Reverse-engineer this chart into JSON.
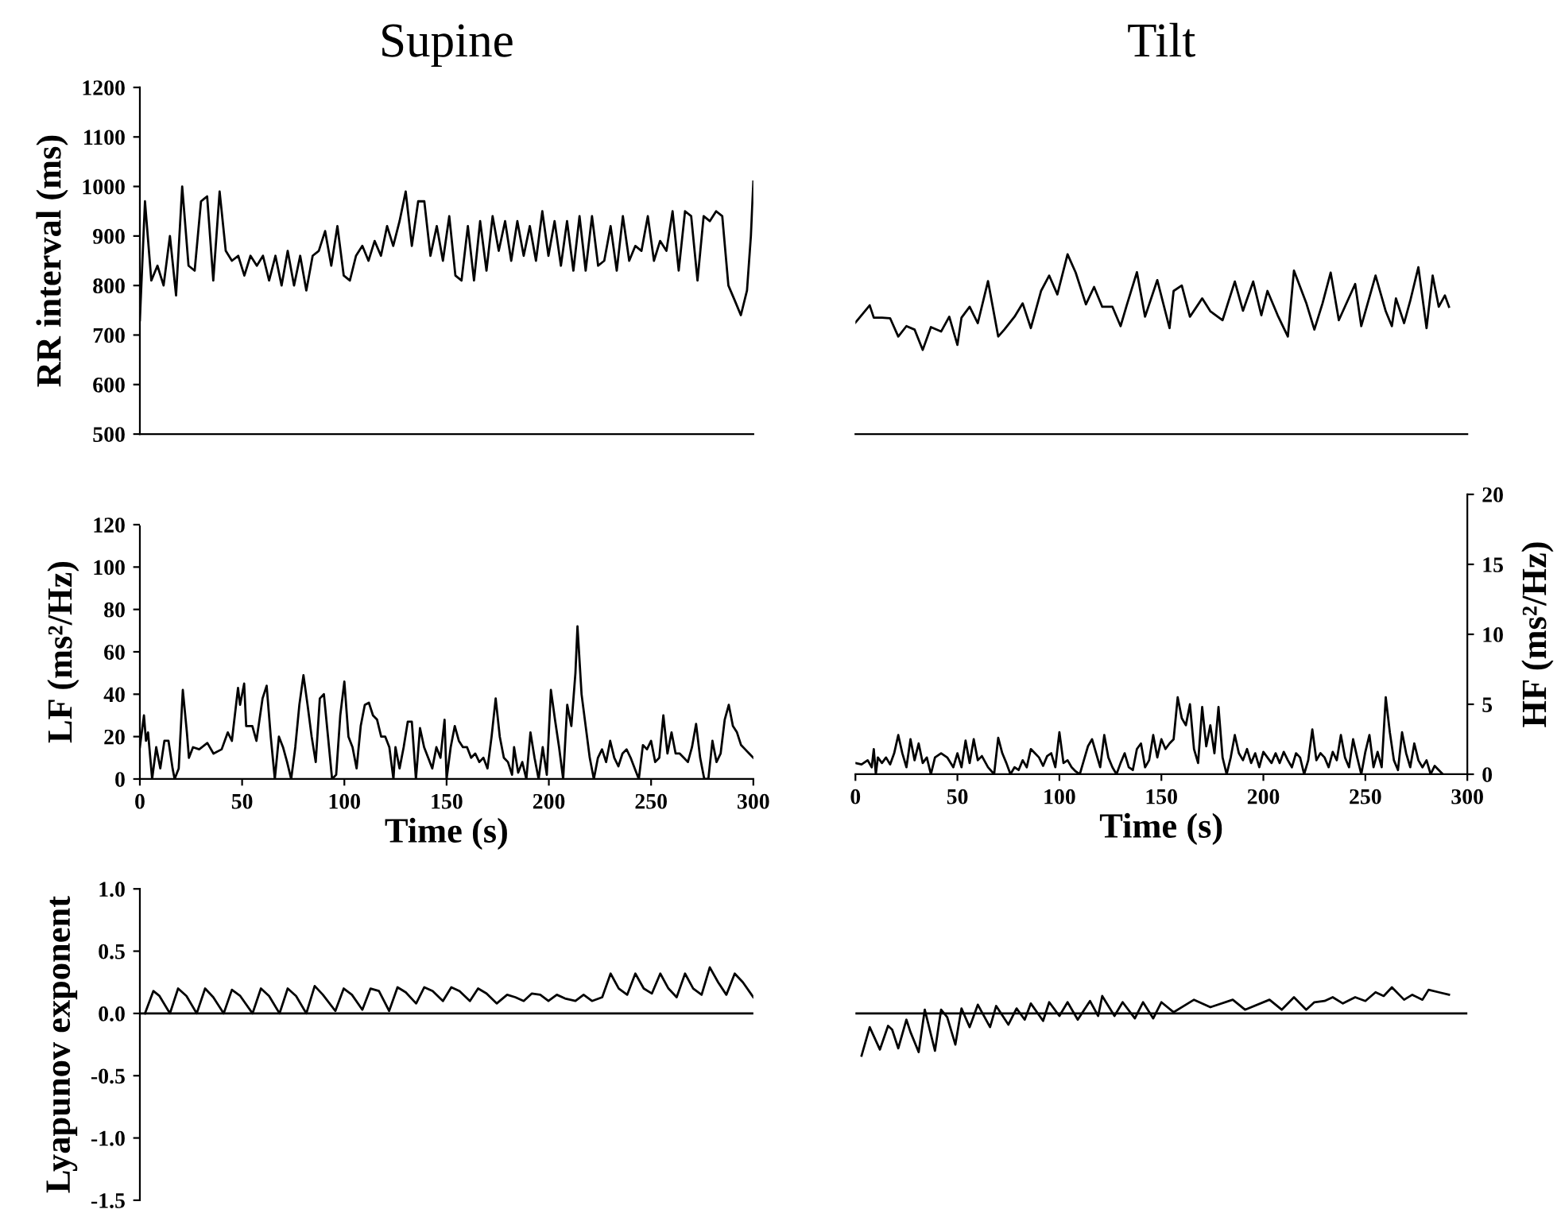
{
  "chart_data": [
    {
      "type": "line",
      "title": "Supine",
      "ylabel": "RR interval (ms)",
      "xlim": [
        0,
        300
      ],
      "ylim": [
        500,
        1200
      ],
      "yticks": [
        500,
        600,
        700,
        800,
        900,
        1000,
        1100,
        1200
      ],
      "tick_labels": "y",
      "series": [
        {
          "color": "#000000",
          "x": [
            0,
            2.5,
            5.6,
            8.6,
            11.6,
            14.7,
            17.7,
            20.7,
            23.8,
            26.8,
            29.9,
            32.9,
            35.9,
            39.0,
            42.0,
            45.0,
            48.1,
            51.1,
            54.1,
            57.2,
            60.2,
            63.2,
            66.3,
            69.3,
            72.3,
            75.4,
            78.4,
            81.4,
            84.5,
            87.5,
            90.6,
            93.6,
            96.6,
            99.7,
            102.7,
            105.7,
            108.8,
            111.8,
            114.8,
            117.9,
            120.9,
            123.9,
            127.0,
            130.0,
            133.0,
            136.1,
            139.1,
            142.1,
            145.2,
            148.2,
            151.3,
            154.3,
            157.3,
            160.4,
            163.4,
            166.4,
            169.5,
            172.5,
            175.5,
            178.6,
            181.6,
            184.6,
            187.7,
            190.7,
            193.7,
            196.8,
            199.8,
            202.8,
            205.9,
            208.9,
            212.0,
            215.0,
            218.0,
            221.1,
            224.1,
            227.1,
            230.2,
            233.2,
            236.2,
            239.3,
            242.3,
            245.3,
            248.4,
            251.4,
            254.4,
            257.5,
            260.5,
            263.5,
            266.6,
            269.6,
            272.7,
            275.7,
            278.7,
            281.8,
            284.8,
            287.8,
            290.9,
            293.9,
            296.9,
            298.8,
            300
          ],
          "values": [
            730,
            970,
            810,
            840,
            800,
            900,
            780,
            1000,
            840,
            830,
            970,
            980,
            810,
            990,
            870,
            850,
            860,
            820,
            860,
            840,
            860,
            810,
            860,
            800,
            870,
            800,
            860,
            790,
            860,
            870,
            910,
            840,
            920,
            820,
            810,
            860,
            880,
            850,
            890,
            860,
            920,
            880,
            930,
            990,
            880,
            970,
            970,
            860,
            920,
            850,
            940,
            820,
            810,
            920,
            810,
            930,
            830,
            940,
            870,
            930,
            850,
            930,
            860,
            920,
            850,
            950,
            860,
            930,
            840,
            930,
            830,
            940,
            830,
            940,
            840,
            850,
            920,
            830,
            940,
            850,
            880,
            870,
            940,
            850,
            890,
            870,
            950,
            830,
            950,
            940,
            810,
            940,
            930,
            950,
            940,
            800,
            770,
            740,
            790,
            900,
            1010
          ]
        }
      ]
    },
    {
      "type": "line",
      "title": "Tilt",
      "xlim": [
        0,
        300
      ],
      "ylim": [
        500,
        1200
      ],
      "tick_labels": false,
      "series": [
        {
          "color": "#000000",
          "x": [
            0,
            7,
            9,
            13,
            17,
            21,
            25,
            29,
            33,
            37,
            42,
            46,
            50,
            52,
            56,
            60,
            65,
            70,
            73,
            78,
            82,
            86,
            91,
            95,
            99,
            104,
            108,
            113,
            117,
            121,
            126,
            130,
            133,
            138,
            142,
            148,
            154,
            156,
            160,
            164,
            170,
            174,
            180,
            186,
            190,
            195,
            199,
            202,
            207,
            212,
            215,
            221,
            225,
            229,
            233,
            237,
            245,
            248,
            255,
            260,
            263,
            265,
            269,
            272,
            276,
            280,
            283,
            286,
            289,
            291
          ],
          "values": [
            725,
            760,
            735,
            735,
            734,
            697,
            718,
            711,
            670,
            716,
            707,
            737,
            680,
            735,
            757,
            724,
            809,
            697,
            711,
            737,
            764,
            714,
            789,
            820,
            782,
            863,
            826,
            762,
            797,
            757,
            757,
            718,
            760,
            827,
            737,
            811,
            714,
            789,
            800,
            737,
            774,
            748,
            730,
            808,
            749,
            808,
            740,
            789,
            740,
            697,
            830,
            765,
            711,
            764,
            826,
            730,
            803,
            718,
            820,
            748,
            718,
            774,
            724,
            769,
            837,
            714,
            820,
            757,
            780,
            757
          ]
        }
      ]
    },
    {
      "type": "line",
      "xlabel": "Time (s)",
      "ylabel": "LF (ms²/Hz)",
      "xlim": [
        0,
        300
      ],
      "xticks": [
        0,
        50,
        100,
        150,
        200,
        250,
        300
      ],
      "ylim": [
        0,
        120
      ],
      "yticks": [
        0,
        20,
        40,
        60,
        80,
        100,
        120
      ],
      "series": [
        {
          "color": "#000000",
          "x": [
            0,
            2,
            3,
            4,
            6,
            8,
            10,
            12,
            14,
            16,
            17,
            19,
            21,
            23,
            24,
            26,
            29,
            33,
            36,
            40,
            43,
            45,
            48,
            49,
            51,
            52,
            55,
            57,
            60,
            62,
            64,
            66,
            68,
            70,
            72,
            74,
            76,
            78,
            80,
            82,
            84,
            86,
            88,
            90,
            92,
            94,
            96,
            98,
            100,
            102,
            104,
            106,
            108,
            110,
            112,
            114,
            116,
            118,
            120,
            122,
            124,
            125,
            127,
            129,
            131,
            133,
            135,
            137,
            139,
            141,
            143,
            145,
            147,
            149,
            150,
            152,
            154,
            156,
            158,
            160,
            162,
            164,
            166,
            168,
            170,
            172,
            174,
            176,
            178,
            180,
            182,
            183,
            185,
            187,
            189,
            191,
            193,
            195,
            197,
            199,
            201,
            203,
            205,
            207,
            209,
            211,
            213,
            214,
            216,
            218,
            220,
            222,
            224,
            226,
            228,
            230,
            232,
            234,
            236,
            238,
            240,
            242,
            244,
            246,
            248,
            250,
            252,
            254,
            256,
            258,
            260,
            262,
            264,
            266,
            268,
            270,
            272,
            274,
            276,
            278,
            280,
            282,
            284,
            286,
            288,
            290,
            292,
            294,
            296,
            298,
            300
          ],
          "values": [
            15,
            30,
            18,
            22,
            0,
            15,
            5,
            18,
            18,
            5,
            0,
            5,
            42,
            22,
            10,
            15,
            14,
            17,
            12,
            14,
            22,
            18,
            43,
            35,
            45,
            25,
            25,
            18,
            38,
            44,
            20,
            0,
            20,
            15,
            8,
            0,
            15,
            35,
            49,
            35,
            20,
            8,
            38,
            40,
            20,
            0,
            2,
            30,
            46,
            20,
            15,
            5,
            25,
            35,
            36,
            30,
            28,
            20,
            20,
            15,
            0,
            15,
            5,
            15,
            27,
            27,
            0,
            24,
            15,
            10,
            5,
            15,
            10,
            28,
            0,
            15,
            25,
            18,
            15,
            15,
            10,
            12,
            8,
            10,
            5,
            20,
            38,
            20,
            10,
            8,
            2,
            15,
            3,
            8,
            0,
            22,
            10,
            0,
            15,
            2,
            42,
            28,
            15,
            0,
            35,
            25,
            50,
            72,
            40,
            25,
            10,
            0,
            10,
            14,
            8,
            18,
            10,
            6,
            12,
            14,
            10,
            5,
            0,
            16,
            14,
            18,
            8,
            10,
            30,
            12,
            22,
            12,
            12,
            10,
            8,
            15,
            26,
            10,
            0,
            0,
            18,
            8,
            12,
            28,
            35,
            25,
            22,
            16,
            14,
            12,
            10
          ]
        }
      ]
    },
    {
      "type": "line",
      "xlabel": "Time (s)",
      "y2label": "HF (ms²/Hz)",
      "xlim": [
        0,
        300
      ],
      "xticks": [
        0,
        50,
        100,
        150,
        200,
        250,
        300
      ],
      "y2lim": [
        0,
        20
      ],
      "y2ticks": [
        0,
        5,
        10,
        15,
        20
      ],
      "series": [
        {
          "color": "#000000",
          "axis": "y2",
          "x": [
            0,
            3,
            6,
            8,
            9,
            10,
            11,
            13,
            15,
            17,
            19,
            21,
            23,
            25,
            27,
            29,
            31,
            33,
            35,
            37,
            39,
            42,
            45,
            48,
            50,
            52,
            54,
            56,
            58,
            60,
            62,
            65,
            68,
            70,
            72,
            74,
            76,
            78,
            80,
            82,
            84,
            86,
            88,
            90,
            92,
            94,
            96,
            98,
            100,
            102,
            104,
            106,
            108,
            110,
            112,
            114,
            116,
            118,
            120,
            122,
            124,
            126,
            128,
            130,
            132,
            134,
            136,
            138,
            140,
            142,
            144,
            146,
            148,
            150,
            152,
            154,
            156,
            158,
            160,
            162,
            164,
            166,
            168,
            170,
            172,
            174,
            176,
            178,
            180,
            182,
            184,
            186,
            188,
            190,
            192,
            194,
            196,
            198,
            200,
            202,
            204,
            206,
            208,
            210,
            212,
            214,
            216,
            218,
            220,
            222,
            224,
            226,
            228,
            230,
            232,
            234,
            236,
            238,
            240,
            242,
            244,
            246,
            248,
            250,
            252,
            254,
            256,
            258,
            260,
            262,
            264,
            266,
            268,
            270,
            272,
            274,
            276,
            278,
            280,
            282,
            284,
            286,
            288
          ],
          "values": [
            0.8,
            0.7,
            1,
            0.5,
            1.8,
            0,
            1.2,
            0.8,
            1.2,
            0.7,
            1.5,
            2.8,
            1.5,
            0.5,
            2.5,
            1,
            2.2,
            0.8,
            1.2,
            0,
            1.2,
            1.5,
            1.2,
            0.5,
            1.5,
            0.5,
            2.4,
            0.8,
            2.5,
            1,
            1.3,
            0.5,
            0,
            2.6,
            1.5,
            0.8,
            0,
            0.5,
            0.3,
            1,
            0.5,
            1.8,
            1.5,
            1.2,
            0.6,
            1.3,
            1.5,
            0.5,
            3,
            0.8,
            1,
            0.5,
            0.2,
            0,
            1,
            2,
            2.5,
            1.5,
            0.5,
            2.8,
            1.2,
            0.5,
            0,
            0.8,
            1.5,
            0.5,
            0.3,
            1.8,
            2.2,
            0.5,
            1,
            2.8,
            1.2,
            2.5,
            1.8,
            2.2,
            2.5,
            5.5,
            4,
            3.5,
            5,
            1.8,
            0.8,
            4.8,
            2,
            3.5,
            1.5,
            4.8,
            1.2,
            0,
            1.2,
            2.8,
            1.5,
            1,
            1.8,
            0.8,
            1.5,
            0.5,
            1.6,
            1.2,
            0.8,
            1.5,
            0.8,
            1.6,
            1,
            0.5,
            1.5,
            1.2,
            0,
            1,
            3.2,
            1,
            1.5,
            1.2,
            0.5,
            1.6,
            1,
            2.8,
            1.2,
            0.5,
            2.5,
            1.2,
            0,
            1.6,
            2.8,
            0.5,
            1.6,
            0.5,
            5.5,
            3,
            1,
            0.3,
            3,
            1.5,
            0.5,
            2.2,
            1,
            0.5,
            1,
            0,
            0.6,
            0.3,
            0
          ]
        }
      ]
    },
    {
      "type": "line",
      "ylabel": "Lyapunov exponent",
      "xlim": [
        0,
        300
      ],
      "ylim": [
        -1.5,
        1.0
      ],
      "yticks": [
        {
          "value": -1.5,
          "label": "-1.5"
        },
        {
          "value": -1.0,
          "label": "-1.0"
        },
        {
          "value": -0.5,
          "label": "-0.5"
        },
        {
          "value": 0.0,
          "label": "0.0"
        },
        {
          "value": 0.5,
          "label": "0.5"
        },
        {
          "value": 1.0,
          "label": "1.0"
        }
      ],
      "tick_labels": "y",
      "ref_lines": [
        {
          "axis": "y",
          "value": 0,
          "color": "#000000"
        }
      ],
      "series": [
        {
          "color": "#000000",
          "x": [
            2.5,
            6.6,
            9.6,
            14.7,
            18.7,
            22.8,
            27.8,
            31.9,
            35.9,
            41.0,
            45.0,
            49.1,
            55.1,
            59.2,
            63.2,
            68.3,
            72.3,
            76.4,
            81.4,
            85.5,
            89.5,
            95.6,
            99.7,
            103.7,
            108.8,
            112.8,
            116.9,
            121.9,
            126.0,
            130.0,
            135.1,
            139.1,
            143.2,
            148.2,
            152.3,
            156.3,
            161.4,
            165.4,
            169.5,
            174.5,
            179.6,
            183.6,
            187.7,
            191.7,
            195.8,
            199.8,
            203.9,
            207.9,
            213.0,
            217.0,
            221.1,
            226.1,
            230.2,
            234.2,
            238.3,
            242.3,
            246.4,
            250.4,
            254.5,
            258.5,
            262.5,
            266.6,
            270.6,
            274.7,
            278.7,
            282.8,
            286.8,
            290.9,
            294.9,
            300.0
          ],
          "values": [
            0,
            0.18,
            0.14,
            0,
            0.2,
            0.14,
            0,
            0.2,
            0.13,
            0,
            0.19,
            0.14,
            0,
            0.2,
            0.14,
            0,
            0.2,
            0.14,
            0,
            0.22,
            0.15,
            0.02,
            0.2,
            0.15,
            0.03,
            0.2,
            0.18,
            0.02,
            0.21,
            0.17,
            0.08,
            0.21,
            0.18,
            0.1,
            0.21,
            0.18,
            0.1,
            0.2,
            0.16,
            0.08,
            0.15,
            0.13,
            0.1,
            0.16,
            0.15,
            0.1,
            0.15,
            0.12,
            0.1,
            0.15,
            0.1,
            0.13,
            0.32,
            0.2,
            0.15,
            0.32,
            0.2,
            0.16,
            0.32,
            0.2,
            0.13,
            0.32,
            0.2,
            0.15,
            0.37,
            0.25,
            0.15,
            0.32,
            0.25,
            0.13
          ]
        }
      ]
    },
    {
      "type": "line",
      "xlim": [
        0,
        300
      ],
      "ylim": [
        -1.5,
        1.0
      ],
      "tick_labels": false,
      "ref_lines": [
        {
          "axis": "y",
          "value": 0,
          "color": "#000000"
        }
      ],
      "series": [
        {
          "color": "#000000",
          "x": [
            3,
            7,
            12,
            16,
            18,
            21,
            25,
            27,
            31,
            34,
            39,
            42,
            45,
            49,
            52,
            56,
            60,
            66,
            69,
            75,
            79,
            83,
            86,
            92,
            95,
            100,
            104,
            109,
            115,
            119,
            121,
            127,
            131,
            137,
            141,
            146,
            150,
            156,
            166,
            174,
            185,
            191,
            203,
            209,
            215,
            221,
            225,
            230,
            234,
            239,
            245,
            250,
            255,
            259,
            263,
            269,
            273,
            278,
            281,
            286,
            291
          ],
          "values": [
            -0.34,
            -0.11,
            -0.29,
            -0.1,
            -0.13,
            -0.28,
            -0.05,
            -0.15,
            -0.31,
            0.03,
            -0.3,
            0.03,
            -0.03,
            -0.25,
            0.04,
            -0.11,
            0.07,
            -0.11,
            0.06,
            -0.09,
            0.04,
            -0.05,
            0.08,
            -0.06,
            0.09,
            -0.02,
            0.09,
            -0.05,
            0.1,
            -0.02,
            0.14,
            -0.02,
            0.09,
            -0.04,
            0.09,
            -0.04,
            0.09,
            0.01,
            0.11,
            0.05,
            0.11,
            0.03,
            0.11,
            0.03,
            0.13,
            0.03,
            0.09,
            0.1,
            0.13,
            0.08,
            0.13,
            0.1,
            0.17,
            0.14,
            0.21,
            0.11,
            0.15,
            0.11,
            0.19,
            0.17,
            0.15
          ]
        }
      ]
    }
  ]
}
